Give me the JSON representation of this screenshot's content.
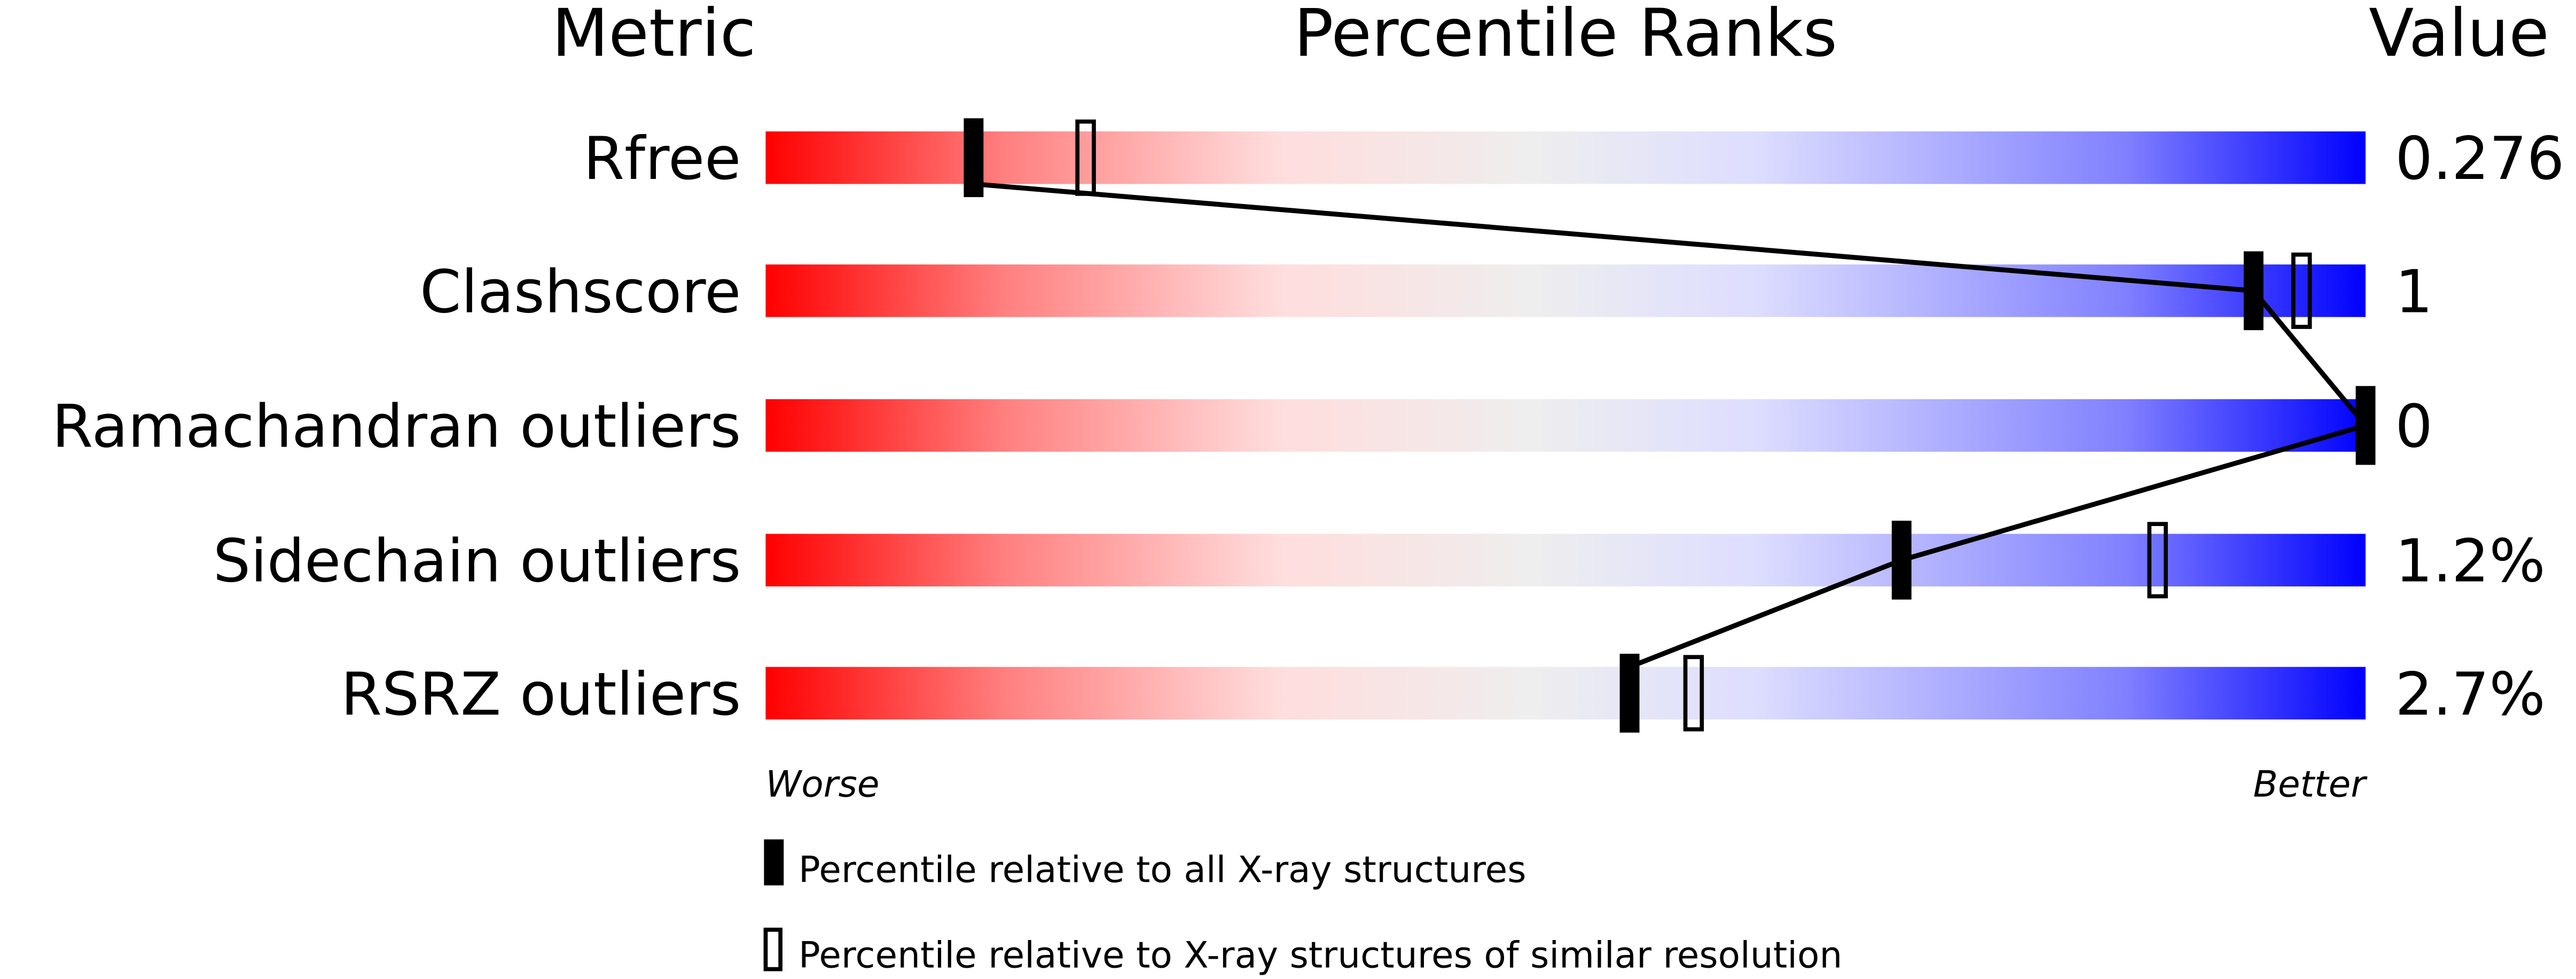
{
  "chart_data": {
    "type": "percentile-slider",
    "headers": {
      "metric": "Metric",
      "ranks": "Percentile Ranks",
      "value": "Value"
    },
    "axis": {
      "min_label": "Worse",
      "max_label": "Better",
      "range": [
        0,
        100
      ]
    },
    "gradient_colors": [
      "#ff0000",
      "#ff8080",
      "#ffdddd",
      "#eeeeee",
      "#ddddff",
      "#8080ff",
      "#0000ff"
    ],
    "metrics": [
      {
        "name": "Rfree",
        "value": "0.276",
        "percentile_all": 13,
        "percentile_similar": 20
      },
      {
        "name": "Clashscore",
        "value": "1",
        "percentile_all": 93,
        "percentile_similar": 96
      },
      {
        "name": "Ramachandran outliers",
        "value": "0",
        "percentile_all": 100,
        "percentile_similar": null
      },
      {
        "name": "Sidechain outliers",
        "value": "1.2%",
        "percentile_all": 71,
        "percentile_similar": 87
      },
      {
        "name": "RSRZ outliers",
        "value": "2.7%",
        "percentile_all": 54,
        "percentile_similar": 58
      }
    ],
    "legend": [
      {
        "marker": "filled",
        "label": "Percentile relative to all X-ray structures"
      },
      {
        "marker": "outline",
        "label": "Percentile relative to X-ray structures of similar resolution"
      }
    ]
  }
}
